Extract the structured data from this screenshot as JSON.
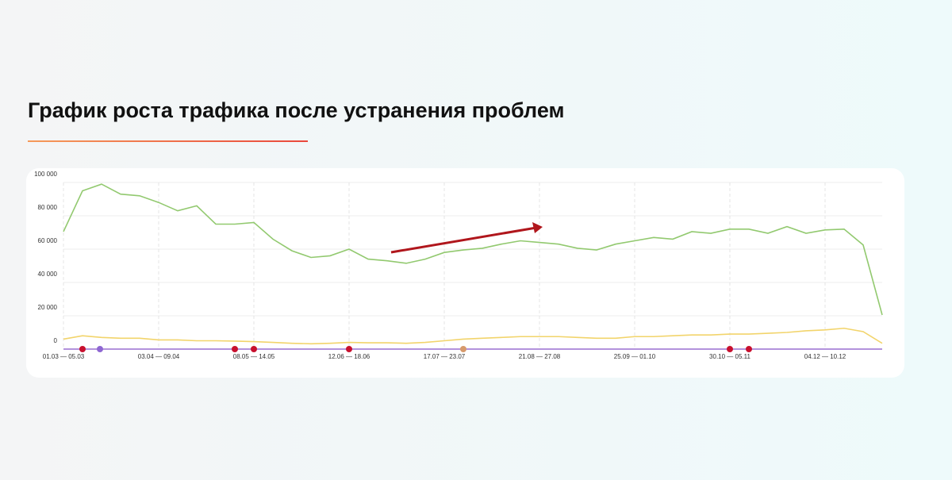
{
  "chart_data": {
    "type": "line",
    "title": "График роста трафика после устранения проблем",
    "categories": [
      "01.03 — 05.03",
      null,
      null,
      null,
      null,
      "03.04 — 09.04",
      null,
      null,
      null,
      null,
      "08.05 — 14.05",
      null,
      null,
      null,
      null,
      "12.06 — 18.06",
      null,
      null,
      null,
      null,
      "17.07 — 23.07",
      null,
      null,
      null,
      null,
      "21.08 — 27.08",
      null,
      null,
      null,
      null,
      "25.09 — 01.10",
      null,
      null,
      null,
      null,
      "30.10 — 05.11",
      null,
      null,
      null,
      null,
      "04.12 — 10.12",
      null,
      null,
      null
    ],
    "series": [
      {
        "color": "#92c96f",
        "values": [
          70500,
          95000,
          99000,
          93000,
          92000,
          88000,
          83000,
          86000,
          75000,
          75000,
          76000,
          66000,
          59000,
          55000,
          56000,
          60000,
          54000,
          53000,
          51500,
          54000,
          58000,
          59500,
          60500,
          63000,
          65000,
          64000,
          63000,
          60500,
          59500,
          63000,
          65000,
          67000,
          66000,
          70500,
          69500,
          72000,
          72000,
          69500,
          73500,
          69500,
          71500,
          72000,
          62500,
          20500
        ]
      },
      {
        "color": "#f2d46b",
        "values": [
          6000,
          8000,
          7000,
          6500,
          6500,
          5500,
          5500,
          5000,
          5000,
          4800,
          4500,
          4000,
          3500,
          3200,
          3500,
          4000,
          3800,
          3800,
          3500,
          4000,
          5000,
          6000,
          6500,
          7000,
          7500,
          7500,
          7500,
          7000,
          6500,
          6500,
          7500,
          7500,
          8000,
          8500,
          8500,
          9000,
          9000,
          9500,
          10000,
          11000,
          11500,
          12500,
          10500,
          3500
        ]
      },
      {
        "color": "#9a6fd0",
        "values": [
          0,
          0,
          0,
          0,
          0,
          0,
          0,
          0,
          0,
          0,
          0,
          0,
          0,
          0,
          0,
          0,
          0,
          0,
          0,
          0,
          0,
          0,
          0,
          0,
          0,
          0,
          0,
          0,
          0,
          0,
          0,
          0,
          0,
          0,
          0,
          0,
          0,
          0,
          0,
          0,
          0,
          0,
          0,
          0
        ]
      }
    ],
    "ylim": [
      0,
      100000
    ],
    "yticks": [
      0,
      {
        "value": 20000,
        "label": "20 000"
      },
      {
        "value": 40000,
        "label": "40 000"
      },
      {
        "value": 60000,
        "label": "60 000"
      },
      {
        "value": 80000,
        "label": "80 000"
      },
      {
        "value": 100000,
        "label": "100 000"
      }
    ],
    "grid": true
  }
}
